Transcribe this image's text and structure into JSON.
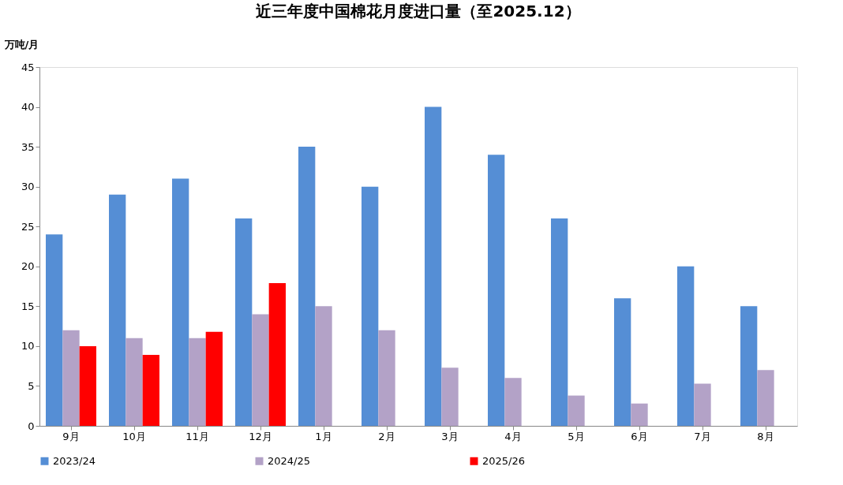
{
  "chart_data": {
    "type": "bar",
    "title": "近三年度中国棉花月度进口量（至2025.12）",
    "ylabel": "万吨/月",
    "categories": [
      "9月",
      "10月",
      "11月",
      "12月",
      "1月",
      "2月",
      "3月",
      "4月",
      "5月",
      "6月",
      "7月",
      "8月"
    ],
    "series": [
      {
        "name": "2023/24",
        "color": "#558ed5",
        "values": [
          24,
          29,
          31,
          26,
          35,
          30,
          40,
          34,
          26,
          16,
          20,
          15
        ]
      },
      {
        "name": "2024/25",
        "color": "#b3a2c7",
        "values": [
          12,
          11,
          11,
          14,
          15,
          12,
          7.3,
          6,
          3.8,
          2.8,
          5.3,
          7
        ]
      },
      {
        "name": "2025/26",
        "color": "#ff0000",
        "values": [
          10,
          8.9,
          11.8,
          17.9,
          null,
          null,
          null,
          null,
          null,
          null,
          null,
          null
        ]
      }
    ],
    "ylim": [
      0,
      45
    ],
    "yticks": [
      0,
      5,
      10,
      15,
      20,
      25,
      30,
      35,
      40,
      45
    ],
    "grid": false,
    "legend": "bottom"
  }
}
